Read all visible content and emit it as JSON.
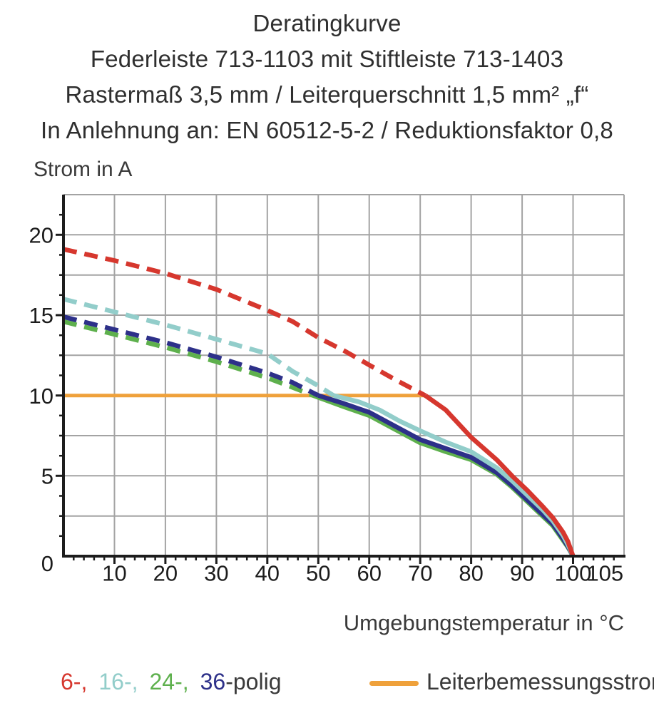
{
  "header": {
    "line1": "Deratingkurve",
    "line2": "Federleiste 713-1103 mit Stiftleiste 713-1403",
    "line3": "Rastermaß 3,5 mm / Leiterquerschnitt 1,5 mm² „f“",
    "line4": "In Anlehnung an: EN 60512-5-2 / Reduktionsfaktor 0,8"
  },
  "chart_data": {
    "type": "line",
    "title": "Deratingkurve",
    "xlabel": "Umgebungstemperatur in °C",
    "ylabel": "Strom in A",
    "xlim": [
      0,
      110
    ],
    "ylim": [
      0,
      22.5
    ],
    "grid": "on",
    "x_grid_step": 10,
    "y_grid_step": 2.5,
    "x_major_tick_step": 10,
    "x_minor_tick_step": 2,
    "y_major_tick_step": 5,
    "y_minor_tick_step": 1.25,
    "x_tick_labels": [
      {
        "v": 10,
        "t": "10"
      },
      {
        "v": 20,
        "t": "20"
      },
      {
        "v": 30,
        "t": "30"
      },
      {
        "v": 40,
        "t": "40"
      },
      {
        "v": 50,
        "t": "50"
      },
      {
        "v": 60,
        "t": "60"
      },
      {
        "v": 70,
        "t": "70"
      },
      {
        "v": 80,
        "t": "80"
      },
      {
        "v": 90,
        "t": "90"
      },
      {
        "v": 100,
        "t": "100"
      },
      {
        "v": 105,
        "t": "105",
        "dx": 9
      }
    ],
    "y_tick_labels": [
      {
        "v": 0,
        "t": "0"
      },
      {
        "v": 5,
        "t": "5"
      },
      {
        "v": 10,
        "t": "10"
      },
      {
        "v": 15,
        "t": "15"
      },
      {
        "v": 20,
        "t": "20"
      }
    ],
    "rated_current_line": {
      "label": "Leiterbemessungsstrom",
      "color": "#efa13b",
      "y": 10,
      "x_start": 0,
      "x_end": 71
    },
    "series": [
      {
        "name": "24-polig",
        "color": "#5eb04d",
        "dashed_points": [
          [
            0,
            14.6
          ],
          [
            10,
            13.8
          ],
          [
            20,
            13.0
          ],
          [
            30,
            12.1
          ],
          [
            40,
            11.1
          ],
          [
            45,
            10.5
          ],
          [
            49,
            10.0
          ]
        ],
        "solid_points": [
          [
            49,
            10.0
          ],
          [
            55,
            9.3
          ],
          [
            60,
            8.75
          ],
          [
            65,
            7.9
          ],
          [
            70,
            7.05
          ],
          [
            75,
            6.5
          ],
          [
            80,
            6.0
          ],
          [
            85,
            5.1
          ],
          [
            88,
            4.3
          ],
          [
            91,
            3.4
          ],
          [
            94,
            2.5
          ],
          [
            96,
            1.9
          ],
          [
            98,
            1.0
          ],
          [
            99,
            0.55
          ],
          [
            100,
            0
          ]
        ]
      },
      {
        "name": "36-polig",
        "color": "#2d3089",
        "dashed_points": [
          [
            0,
            14.9
          ],
          [
            10,
            14.1
          ],
          [
            20,
            13.3
          ],
          [
            30,
            12.4
          ],
          [
            40,
            11.4
          ],
          [
            45,
            10.8
          ],
          [
            50,
            10.0
          ]
        ],
        "solid_points": [
          [
            50,
            10.0
          ],
          [
            55,
            9.5
          ],
          [
            60,
            8.95
          ],
          [
            65,
            8.1
          ],
          [
            70,
            7.25
          ],
          [
            75,
            6.7
          ],
          [
            80,
            6.15
          ],
          [
            85,
            5.2
          ],
          [
            88,
            4.4
          ],
          [
            91,
            3.5
          ],
          [
            94,
            2.6
          ],
          [
            96,
            2.0
          ],
          [
            98,
            1.1
          ],
          [
            99,
            0.6
          ],
          [
            100,
            0
          ]
        ]
      },
      {
        "name": "16-polig",
        "color": "#92cdca",
        "dashed_points": [
          [
            0,
            16.0
          ],
          [
            10,
            15.2
          ],
          [
            20,
            14.4
          ],
          [
            30,
            13.5
          ],
          [
            40,
            12.6
          ],
          [
            45,
            11.5
          ],
          [
            50,
            10.6
          ],
          [
            53,
            10.0
          ]
        ],
        "solid_points": [
          [
            53,
            10.0
          ],
          [
            58,
            9.6
          ],
          [
            62,
            9.1
          ],
          [
            66,
            8.4
          ],
          [
            70,
            7.8
          ],
          [
            75,
            7.1
          ],
          [
            80,
            6.5
          ],
          [
            85,
            5.5
          ],
          [
            88,
            4.7
          ],
          [
            91,
            3.8
          ],
          [
            94,
            2.9
          ],
          [
            96,
            2.2
          ],
          [
            98,
            1.3
          ],
          [
            99,
            0.7
          ],
          [
            100,
            0
          ]
        ]
      },
      {
        "name": "6-polig",
        "color": "#d6372e",
        "dashed_points": [
          [
            0,
            19.1
          ],
          [
            10,
            18.4
          ],
          [
            20,
            17.6
          ],
          [
            30,
            16.6
          ],
          [
            40,
            15.3
          ],
          [
            45,
            14.6
          ],
          [
            50,
            13.6
          ],
          [
            55,
            12.8
          ],
          [
            60,
            11.9
          ],
          [
            65,
            11.0
          ],
          [
            71,
            10.0
          ]
        ],
        "solid_points": [
          [
            71,
            10.0
          ],
          [
            75,
            9.1
          ],
          [
            80,
            7.4
          ],
          [
            85,
            6.0
          ],
          [
            88,
            5.0
          ],
          [
            91,
            4.1
          ],
          [
            94,
            3.1
          ],
          [
            96,
            2.4
          ],
          [
            98,
            1.5
          ],
          [
            99,
            0.9
          ],
          [
            100,
            0
          ]
        ]
      }
    ]
  },
  "legend": {
    "pole_items": [
      {
        "text": "6-,",
        "color": "#d6372e"
      },
      {
        "text": "16-,",
        "color": "#92cdca"
      },
      {
        "text": "24-,",
        "color": "#5eb04d"
      },
      {
        "text": "36",
        "color": "#2d3089"
      },
      {
        "text": "-polig",
        "color": "#3a3a3a"
      }
    ],
    "rated": {
      "label": "Leiterbemessungsstrom",
      "color": "#efa13b"
    }
  }
}
